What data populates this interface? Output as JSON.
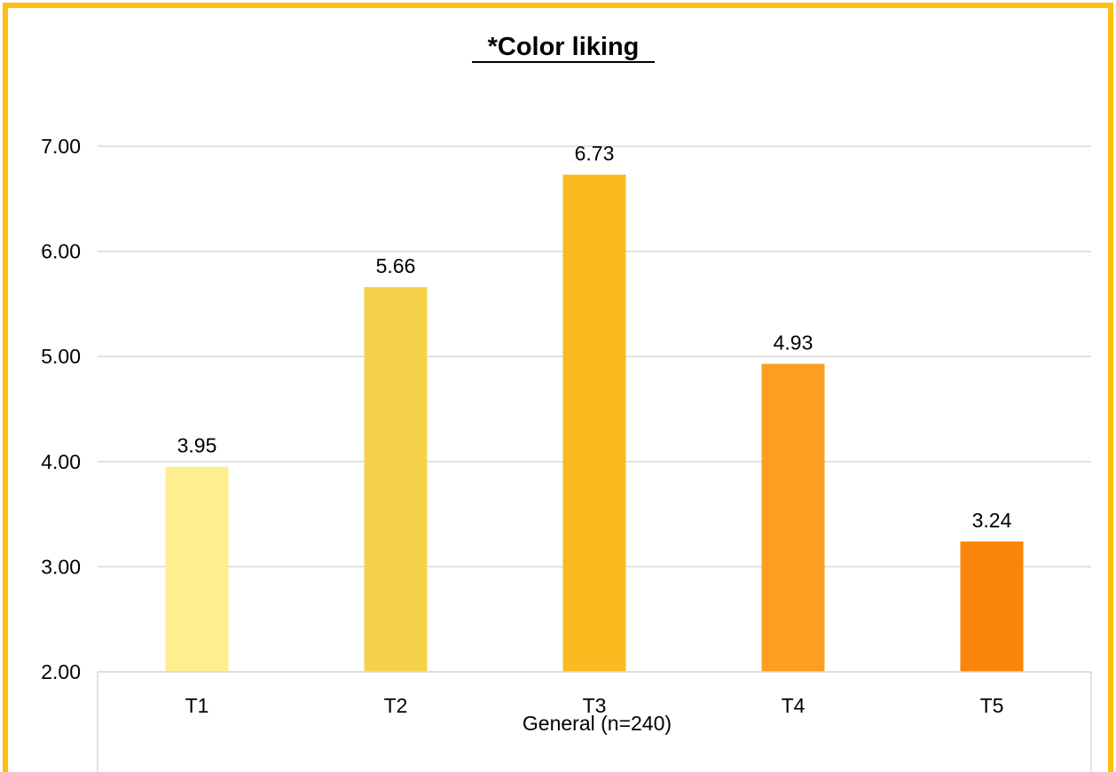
{
  "chart_data": {
    "type": "bar",
    "title": "*Color liking",
    "group_label": "General (n=240)",
    "categories": [
      "T1",
      "T2",
      "T3",
      "T4",
      "T5"
    ],
    "values": [
      3.95,
      5.66,
      6.73,
      4.93,
      3.24
    ],
    "data_labels": [
      "3.95",
      "5.66",
      "6.73",
      "4.93",
      "3.24"
    ],
    "ylim": [
      2.0,
      7.0
    ],
    "yticks": [
      2.0,
      3.0,
      4.0,
      5.0,
      6.0,
      7.0
    ],
    "ytick_labels": [
      "2.00",
      "3.00",
      "4.00",
      "5.00",
      "6.00",
      "7.00"
    ],
    "grid": true,
    "legend": "none",
    "bar_colors": [
      "#FDEE8F",
      "#F6D24A",
      "#FBBB20",
      "#FC9F20",
      "#FB840A"
    ],
    "frame_color": "#FDBE10",
    "grid_color": "#D9D9D9",
    "text_color": "#000000"
  }
}
